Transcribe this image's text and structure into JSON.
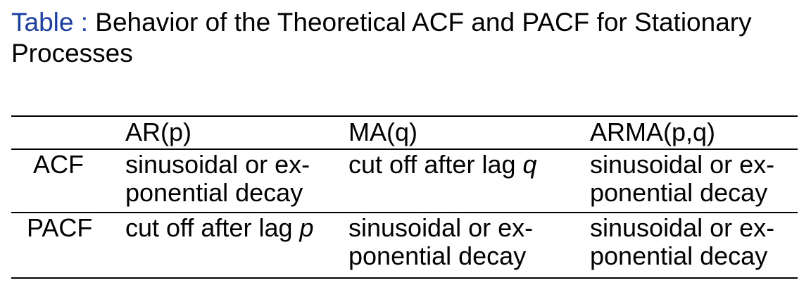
{
  "caption": {
    "label": "Table",
    "separator": " :",
    "title": "Behavior of the Theoretical ACF and PACF for Stationary Processes"
  },
  "table": {
    "headers": [
      "",
      "AR(p)",
      "MA(q)",
      "ARMA(p,q)"
    ],
    "rows": [
      {
        "label": "ACF",
        "ar": [
          "sinusoidal or ex-",
          "ponential decay"
        ],
        "ma": {
          "text": "cut off after lag ",
          "var": "q"
        },
        "arma": [
          "sinusoidal or ex-",
          "ponential decay"
        ]
      },
      {
        "label": "PACF",
        "ar": {
          "text": "cut off after lag ",
          "var": "p"
        },
        "ma": {
          "words": [
            "sinusoidal",
            "or",
            "ex-"
          ],
          "line2": "ponential decay"
        },
        "arma": [
          "sinusoidal or ex-",
          "ponential decay"
        ]
      }
    ]
  }
}
